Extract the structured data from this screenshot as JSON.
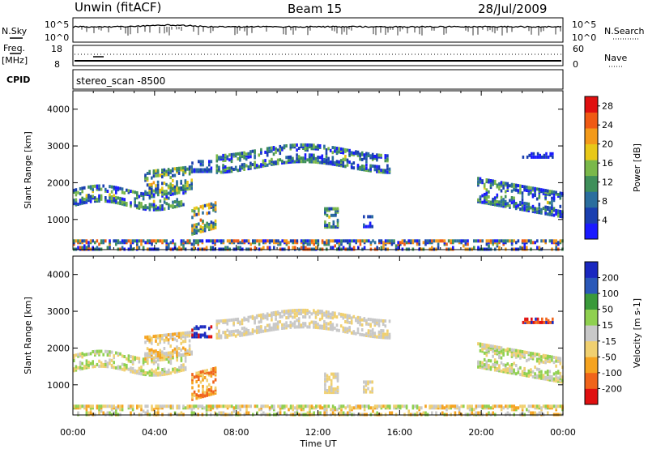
{
  "header": {
    "site": "Unwin (fitACF)",
    "beam": "Beam 15",
    "date": "28/Jul/2009"
  },
  "strips": {
    "nsky_label": "N.Sky",
    "nsky_ticks": [
      "10^5",
      "10^0"
    ],
    "nsearch_label": "N.Search",
    "nsearch_ticks": [
      "10^5",
      "10^0"
    ],
    "freq_label": "Freq.",
    "freq_unit": "[MHz]",
    "freq_ticks": [
      "18",
      "8"
    ],
    "nave_label": "Nave",
    "nave_ticks": [
      "60",
      "0"
    ],
    "cpid_label": "CPID",
    "cpid_value": "stereo_scan -8500"
  },
  "colors": {
    "power": [
      "#1a1aff",
      "#1a3fb0",
      "#2b6e9e",
      "#3f8f5a",
      "#7ab84a",
      "#e8c818",
      "#f39a1a",
      "#f05a14",
      "#e01010"
    ],
    "velocity": [
      "#e01010",
      "#f0641a",
      "#f5a320",
      "#f0d070",
      "#c8c8c8",
      "#8fd050",
      "#3a9a3a",
      "#2a58b8",
      "#1a28c0"
    ]
  },
  "chart_data": [
    {
      "type": "heatmap",
      "title": "",
      "xlabel": "Time UT",
      "ylabel": "Slant Range [km]",
      "xticks": [
        "00:00",
        "04:00",
        "08:00",
        "12:00",
        "16:00",
        "20:00",
        "00:00"
      ],
      "xlim": [
        0,
        24
      ],
      "ylim": [
        180,
        4500
      ],
      "yticks": [
        "1000",
        "2000",
        "3000",
        "4000"
      ],
      "colorbar": {
        "label": "Power [dB]",
        "ticks": [
          "4",
          "8",
          "12",
          "16",
          "20",
          "24",
          "28"
        ],
        "range": [
          0,
          30
        ]
      }
    },
    {
      "type": "heatmap",
      "title": "",
      "xlabel": "Time UT",
      "ylabel": "Slant Range [km]",
      "xticks": [
        "00:00",
        "04:00",
        "08:00",
        "12:00",
        "16:00",
        "20:00",
        "00:00"
      ],
      "xlim": [
        0,
        24
      ],
      "ylim": [
        180,
        4500
      ],
      "yticks": [
        "1000",
        "2000",
        "3000",
        "4000"
      ],
      "colorbar": {
        "label": "Velocity [m s-1]",
        "ticks": [
          "200",
          "100",
          "50",
          "15",
          "-15",
          "-50",
          "-100",
          "-200"
        ],
        "range": [
          -250,
          250
        ]
      }
    }
  ]
}
